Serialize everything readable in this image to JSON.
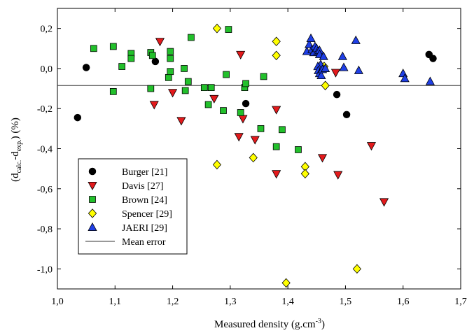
{
  "chart_data": {
    "type": "scatter",
    "xlabel_main": "Measured density (g.cm",
    "xlabel_sup": "-3",
    "xlabel_end": ")",
    "ylabel": {
      "pre": "(d",
      "sub1": "calc.",
      "mid": "-d",
      "sub2": "exp.",
      "post": ") (%)"
    },
    "xlim": [
      1.0,
      1.7
    ],
    "ylim": [
      -1.1,
      0.3
    ],
    "xticks": [
      "1,0",
      "1,1",
      "1,2",
      "1,3",
      "1,4",
      "1,5",
      "1,6",
      "1,7"
    ],
    "xtick_values": [
      1.0,
      1.1,
      1.2,
      1.3,
      1.4,
      1.5,
      1.6,
      1.7
    ],
    "yticks": [
      "0,2",
      "0,0",
      "-0,2",
      "-0,4",
      "-0,6",
      "-0,8",
      "-1,0"
    ],
    "ytick_values": [
      0.2,
      0.0,
      -0.2,
      -0.4,
      -0.6,
      -0.8,
      -1.0
    ],
    "legend_position": "lower-left",
    "mean_error": -0.085,
    "mean_error_label": "Mean error",
    "series": [
      {
        "name": "Burger [21]",
        "marker": "circle",
        "color": "#000000",
        "points": [
          [
            1.035,
            -0.245
          ],
          [
            1.05,
            0.005
          ],
          [
            1.17,
            0.035
          ],
          [
            1.327,
            -0.175
          ],
          [
            1.485,
            -0.13
          ],
          [
            1.502,
            -0.23
          ],
          [
            1.645,
            0.07
          ],
          [
            1.652,
            0.05
          ]
        ]
      },
      {
        "name": "Davis [27]",
        "marker": "triangle-down",
        "color": "#e31a1c",
        "points": [
          [
            1.168,
            -0.18
          ],
          [
            1.178,
            0.135
          ],
          [
            1.2,
            -0.12
          ],
          [
            1.215,
            -0.26
          ],
          [
            1.272,
            -0.15
          ],
          [
            1.315,
            -0.34
          ],
          [
            1.318,
            0.07
          ],
          [
            1.322,
            -0.25
          ],
          [
            1.343,
            -0.355
          ],
          [
            1.38,
            -0.205
          ],
          [
            1.38,
            -0.525
          ],
          [
            1.46,
            -0.445
          ],
          [
            1.483,
            -0.02
          ],
          [
            1.487,
            -0.53
          ],
          [
            1.545,
            -0.385
          ],
          [
            1.567,
            -0.665
          ]
        ]
      },
      {
        "name": "Brown [24]",
        "marker": "square",
        "color": "#22c02b",
        "points": [
          [
            1.063,
            0.1
          ],
          [
            1.097,
            0.11
          ],
          [
            1.097,
            -0.115
          ],
          [
            1.112,
            0.01
          ],
          [
            1.128,
            0.075
          ],
          [
            1.128,
            0.05
          ],
          [
            1.162,
            0.08
          ],
          [
            1.162,
            -0.1
          ],
          [
            1.165,
            0.065
          ],
          [
            1.193,
            -0.045
          ],
          [
            1.196,
            0.085
          ],
          [
            1.196,
            0.05
          ],
          [
            1.196,
            -0.015
          ],
          [
            1.22,
            0.0
          ],
          [
            1.222,
            -0.11
          ],
          [
            1.227,
            -0.065
          ],
          [
            1.232,
            0.155
          ],
          [
            1.255,
            -0.095
          ],
          [
            1.262,
            -0.18
          ],
          [
            1.267,
            -0.095
          ],
          [
            1.288,
            -0.21
          ],
          [
            1.293,
            -0.03
          ],
          [
            1.297,
            0.195
          ],
          [
            1.318,
            -0.22
          ],
          [
            1.325,
            -0.095
          ],
          [
            1.327,
            -0.075
          ],
          [
            1.353,
            -0.3
          ],
          [
            1.358,
            -0.04
          ],
          [
            1.38,
            -0.39
          ],
          [
            1.39,
            -0.305
          ],
          [
            1.418,
            -0.405
          ]
        ]
      },
      {
        "name": "Spencer [29]",
        "marker": "diamond",
        "color": "#ffff00",
        "points": [
          [
            1.277,
            0.2
          ],
          [
            1.277,
            -0.48
          ],
          [
            1.34,
            -0.445
          ],
          [
            1.38,
            0.135
          ],
          [
            1.38,
            0.065
          ],
          [
            1.397,
            -1.07
          ],
          [
            1.43,
            -0.49
          ],
          [
            1.43,
            -0.525
          ],
          [
            1.463,
            0.01
          ],
          [
            1.465,
            -0.085
          ],
          [
            1.52,
            -1.0
          ]
        ]
      },
      {
        "name": "JAERI [29]",
        "marker": "triangle-up",
        "color": "#1f3fe6",
        "points": [
          [
            1.433,
            0.085
          ],
          [
            1.437,
            0.12
          ],
          [
            1.44,
            0.15
          ],
          [
            1.442,
            0.095
          ],
          [
            1.445,
            0.08
          ],
          [
            1.447,
            0.11
          ],
          [
            1.45,
            0.1
          ],
          [
            1.452,
            0.085
          ],
          [
            1.455,
            0.09
          ],
          [
            1.455,
            0.07
          ],
          [
            1.457,
            0.02
          ],
          [
            1.452,
            0.01
          ],
          [
            1.453,
            -0.01
          ],
          [
            1.455,
            -0.025
          ],
          [
            1.458,
            -0.035
          ],
          [
            1.46,
            -0.005
          ],
          [
            1.462,
            0.06
          ],
          [
            1.465,
            0.0
          ],
          [
            1.495,
            0.06
          ],
          [
            1.497,
            0.005
          ],
          [
            1.518,
            0.14
          ],
          [
            1.523,
            -0.01
          ],
          [
            1.6,
            -0.025
          ],
          [
            1.603,
            -0.05
          ],
          [
            1.647,
            -0.065
          ]
        ]
      }
    ]
  }
}
